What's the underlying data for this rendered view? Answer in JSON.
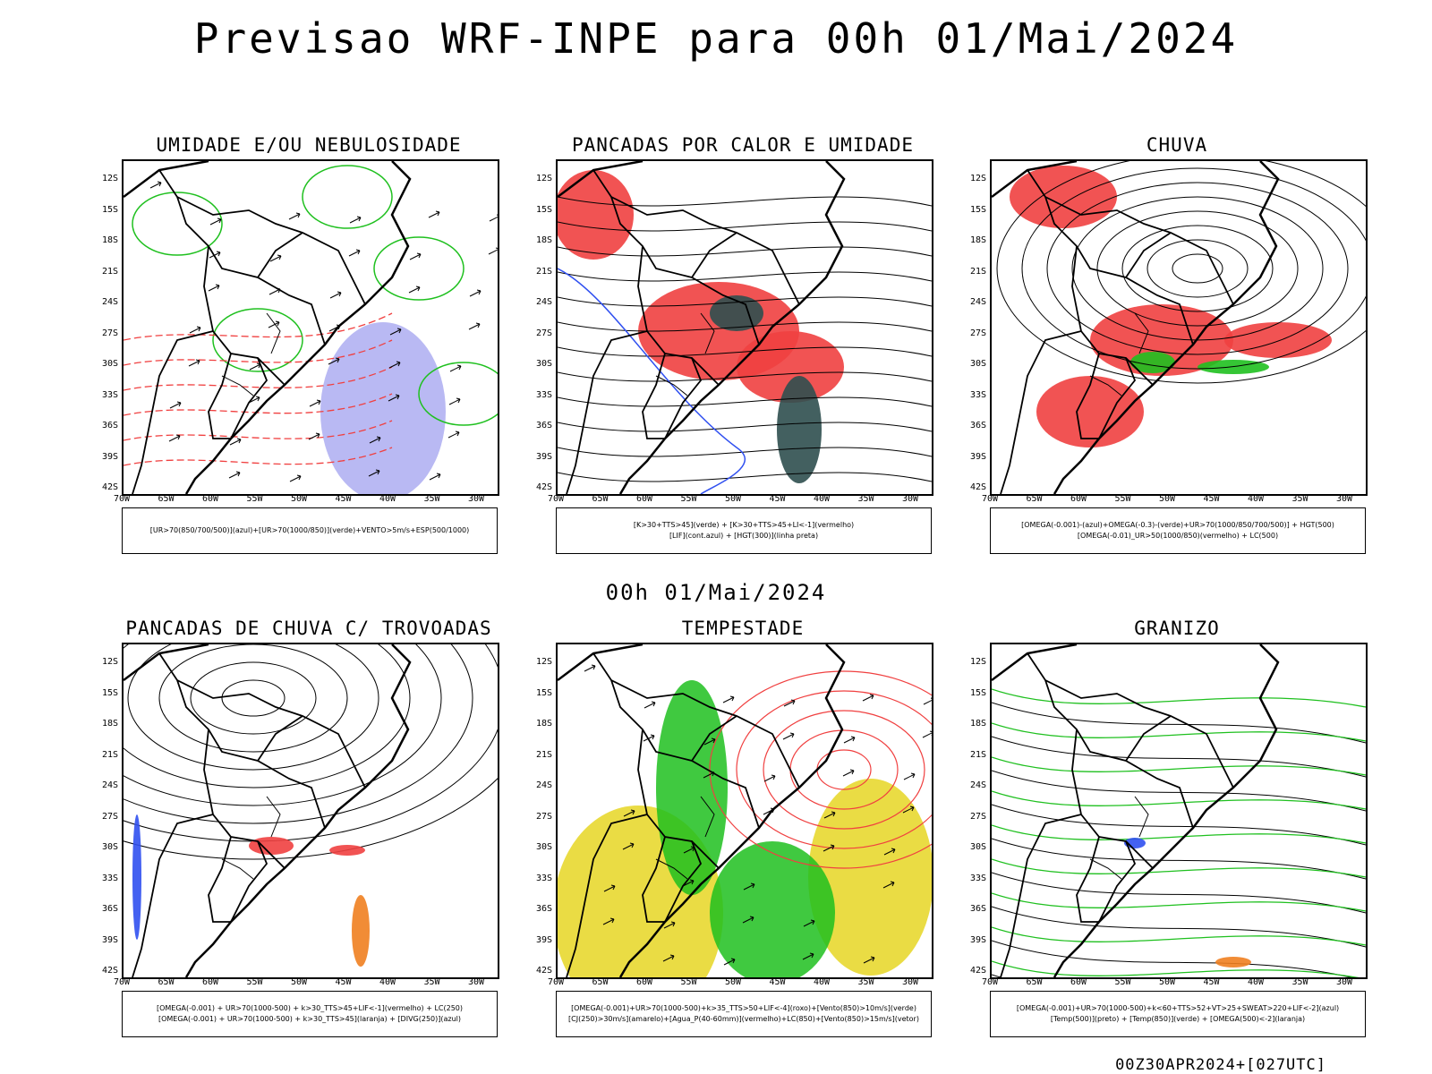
{
  "title": "Previsao WRF-INPE  para 00h 01/Mai/2024",
  "mid_title": "00h 01/Mai/2024",
  "footer": "00Z30APR2024+[027UTC]",
  "lat_labels": [
    "12S",
    "15S",
    "18S",
    "21S",
    "24S",
    "27S",
    "30S",
    "33S",
    "36S",
    "39S",
    "42S"
  ],
  "lon_labels": [
    "70W",
    "65W",
    "60W",
    "55W",
    "50W",
    "45W",
    "40W",
    "35W",
    "30W"
  ],
  "colors": {
    "red": "#f04040",
    "green": "#1fc01f",
    "blue": "#3050f0",
    "yellow": "#e8d830",
    "lavender": "#a8a8f0",
    "darkteal": "#2f4f4f",
    "orange": "#f08020"
  },
  "panels": [
    {
      "title": "UMIDADE E/OU NEBULOSIDADE",
      "legend": [
        "[UR>70(850/700/500)](azul)+[UR>70(1000/850)](verde)+VENTO>5m/s+ESP(500/1000)"
      ]
    },
    {
      "title": "PANCADAS POR CALOR E UMIDADE",
      "legend": [
        "[K>30+TTS>45](verde) + [K>30+TTS>45+LI<-1](vermelho)",
        "[LIF](cont.azul) + [HGT(300)](linha preta)"
      ]
    },
    {
      "title": "CHUVA",
      "legend": [
        "[OMEGA(-0.001)-(azul)+OMEGA(-0.3)-(verde)+UR>70(1000/850/700/500)] + HGT(500)",
        "[OMEGA(-0.01)_UR>50(1000/850)(vermelho) + LC(500)"
      ]
    },
    {
      "title": "PANCADAS DE CHUVA C/ TROVOADAS",
      "legend": [
        "[OMEGA(-0.001) + UR>70(1000-500) + k>30_TTS>45+LIF<-1](vermelho) + LC(250)",
        "[OMEGA(-0.001) + UR>70(1000-500) + k>30_TTS>45](laranja) + [DIVG(250)](azul)"
      ]
    },
    {
      "title": "TEMPESTADE",
      "legend": [
        "[OMEGA(-0.001)+UR>70(1000-500)+k>35_TTS>50+LIF<-4](roxo)+[Vento(850)>10m/s](verde)",
        "[CJ(250)>30m/s](amarelo)+[Agua_P(40-60mm)](vermelho)+LC(850)+[Vento(850)>15m/s](vetor)"
      ]
    },
    {
      "title": "GRANIZO",
      "legend": [
        "[OMEGA(-0.001)+UR>70(1000-500)+k<60+TTS>52+VT>25+SWEAT>220+LIF<-2](azul)",
        "[Temp(500)](preto) + [Temp(850)](verde) + [OMEGA(500)<-2](laranja)"
      ]
    }
  ]
}
